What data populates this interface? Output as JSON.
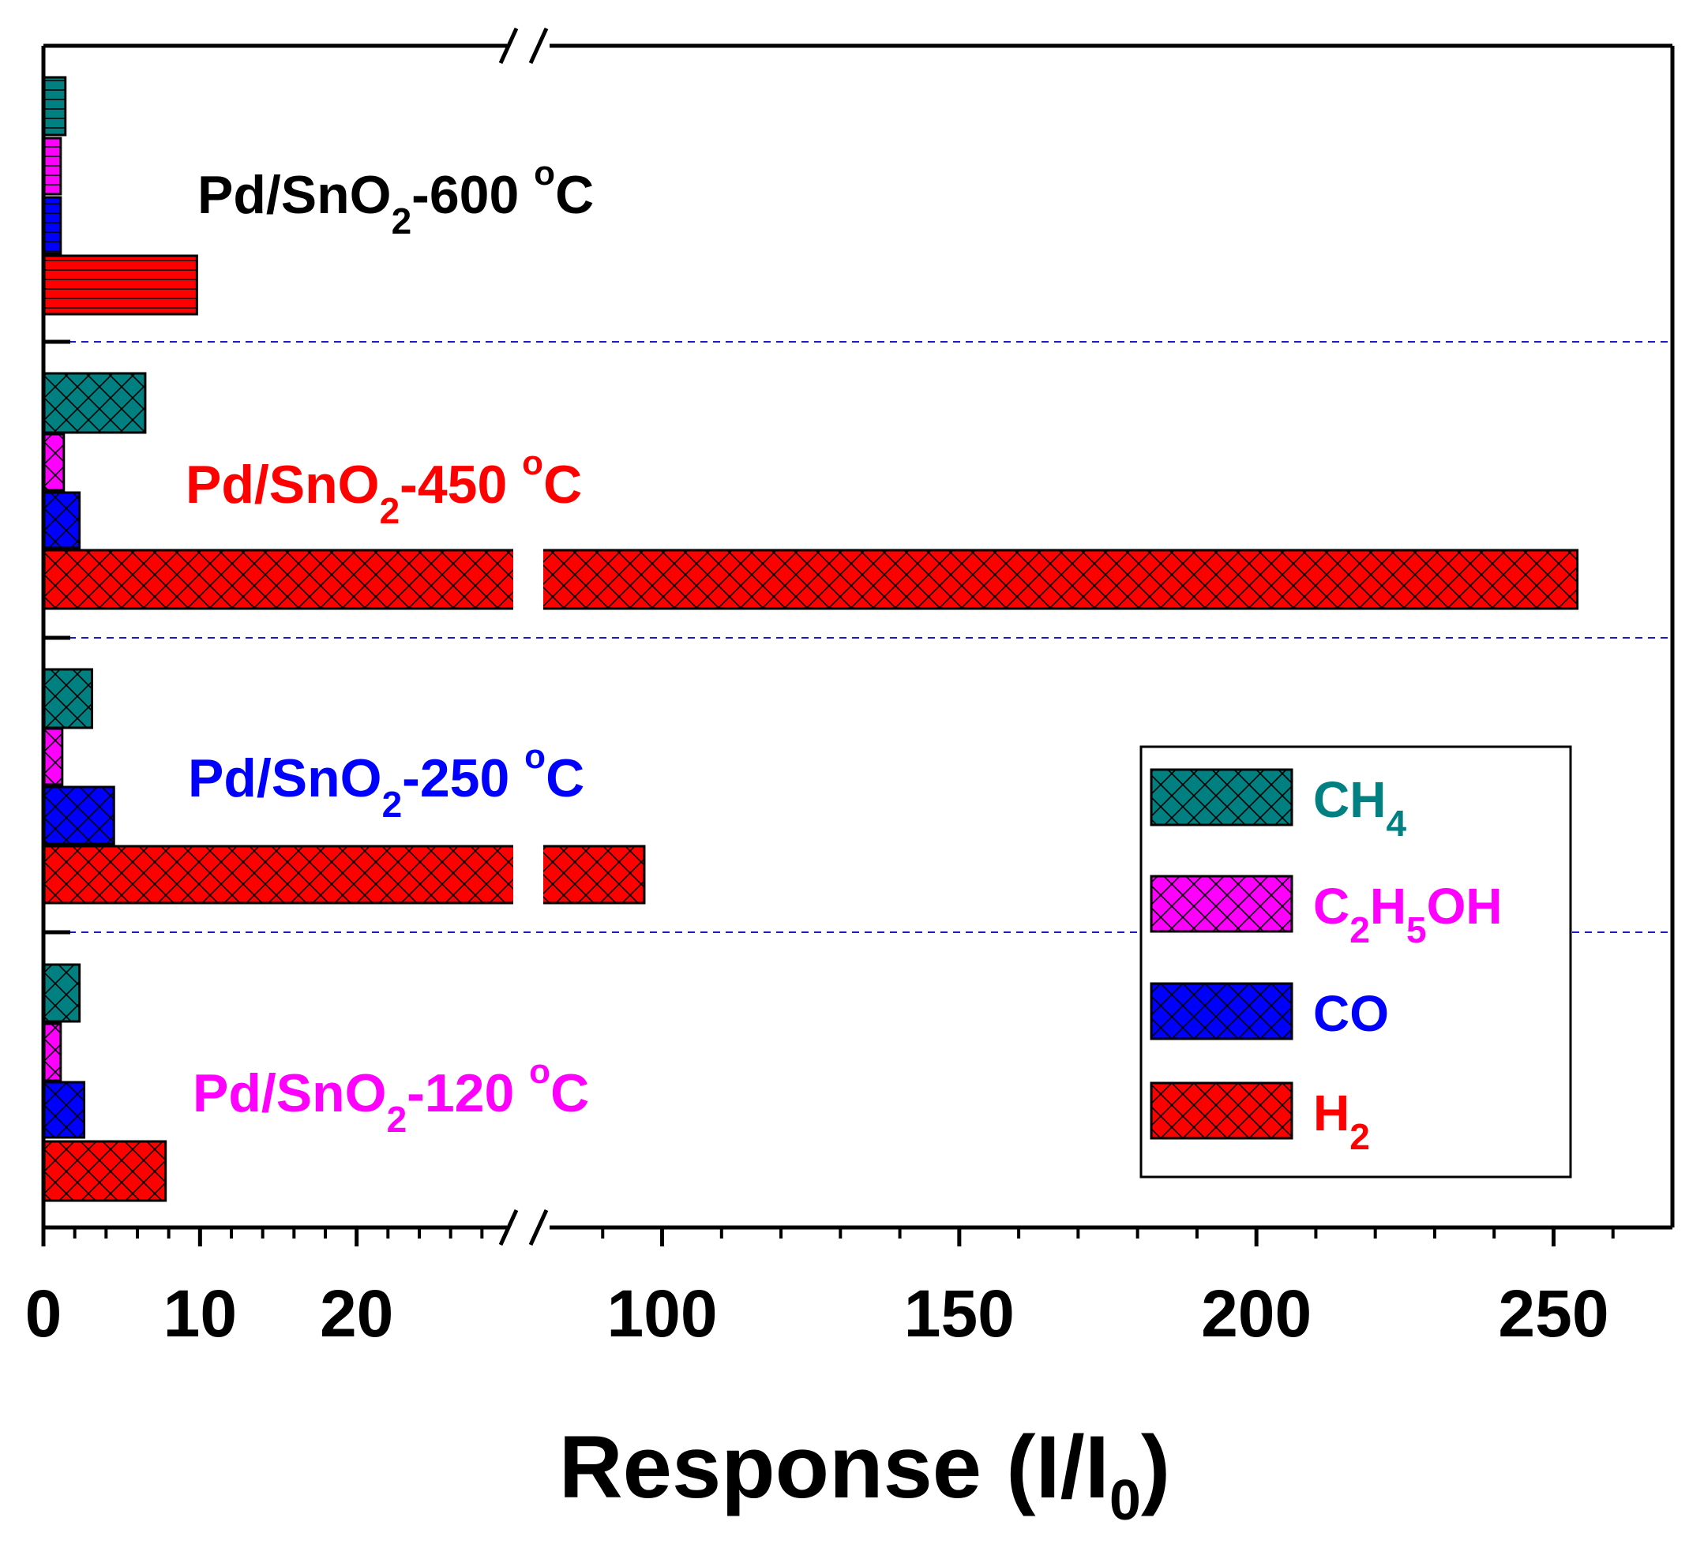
{
  "chart_data": {
    "type": "bar",
    "orientation": "horizontal",
    "xlabel": {
      "main": "Response (I/I",
      "sub": "0",
      "close": ")"
    },
    "axis_break": {
      "from": 30,
      "to": 80
    },
    "xlim": [
      0,
      270
    ],
    "x_ticks": [
      {
        "value": 0,
        "label": "0"
      },
      {
        "value": 10,
        "label": "10"
      },
      {
        "value": 20,
        "label": "20"
      },
      {
        "value": 100,
        "label": "100"
      },
      {
        "value": 150,
        "label": "150"
      },
      {
        "value": 200,
        "label": "200"
      },
      {
        "value": 250,
        "label": "250"
      }
    ],
    "minor_ticks": [
      2,
      4,
      6,
      8,
      12,
      14,
      16,
      18,
      22,
      24,
      26,
      28,
      90,
      110,
      120,
      130,
      140,
      160,
      170,
      180,
      190,
      210,
      220,
      230,
      240,
      260
    ],
    "legend": {
      "position": "bottom-right",
      "entries": [
        {
          "key": "CH4",
          "base": "CH",
          "sub": "4",
          "tail": "",
          "color": "#008080"
        },
        {
          "key": "C2H5OH",
          "base": "C",
          "sub": "2",
          "mid": "H",
          "sub2": "5",
          "tail": "OH",
          "color": "#ff00ff"
        },
        {
          "key": "CO",
          "base": "CO",
          "sub": "",
          "tail": "",
          "color": "#0000ff"
        },
        {
          "key": "H2",
          "base": "H",
          "sub": "2",
          "tail": "",
          "color": "#ff0000"
        }
      ]
    },
    "groups": [
      {
        "label_pre": "Pd/SnO",
        "label_sub": "2",
        "label_mid": "-600 ",
        "label_sup": "o",
        "label_post": "C",
        "label_color": "#000000",
        "pattern": "horizontal-lines",
        "values": {
          "CH4": 1.4,
          "C2H5OH": 1.1,
          "CO": 1.1,
          "H2": 9.8
        }
      },
      {
        "label_pre": "Pd/SnO",
        "label_sub": "2",
        "label_mid": "-450 ",
        "label_sup": "o",
        "label_post": "C",
        "label_color": "#ff0000",
        "pattern": "crosshatch",
        "values": {
          "CH4": 6.5,
          "C2H5OH": 1.3,
          "CO": 2.3,
          "H2": 254
        }
      },
      {
        "label_pre": "Pd/SnO",
        "label_sub": "2",
        "label_mid": "-250 ",
        "label_sup": "o",
        "label_post": "C",
        "label_color": "#0000ff",
        "pattern": "crosshatch",
        "values": {
          "CH4": 3.1,
          "C2H5OH": 1.2,
          "CO": 4.5,
          "H2": 97
        }
      },
      {
        "label_pre": "Pd/SnO",
        "label_sub": "2",
        "label_mid": "-120 ",
        "label_sup": "o",
        "label_post": "C",
        "label_color": "#ff00ff",
        "pattern": "crosshatch",
        "values": {
          "CH4": 2.3,
          "C2H5OH": 1.1,
          "CO": 2.6,
          "H2": 7.8
        }
      }
    ]
  }
}
